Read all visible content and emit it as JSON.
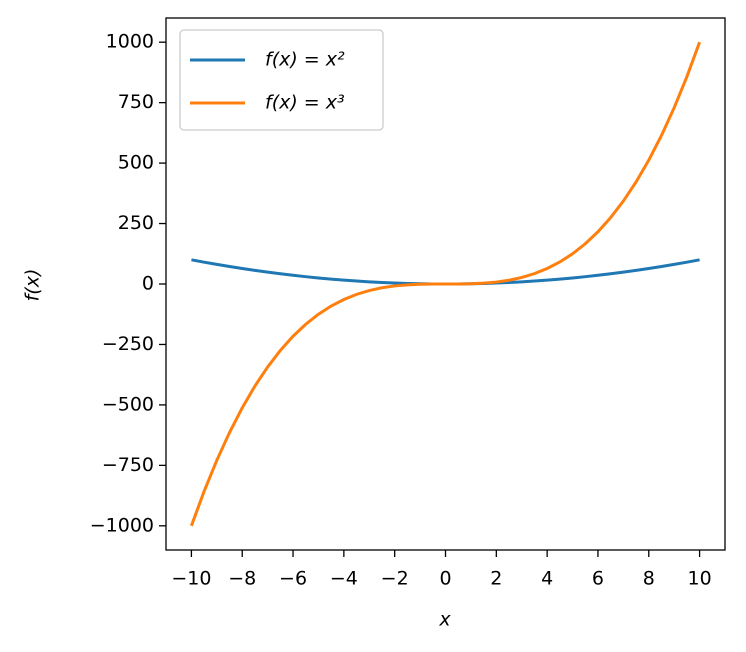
{
  "chart_data": {
    "type": "line",
    "xlabel": "x",
    "ylabel": "f(x)",
    "x": [
      -10,
      -9.5,
      -9,
      -8.5,
      -8,
      -7.5,
      -7,
      -6.5,
      -6,
      -5.5,
      -5,
      -4.5,
      -4,
      -3.5,
      -3,
      -2.5,
      -2,
      -1.5,
      -1,
      -0.5,
      0,
      0.5,
      1,
      1.5,
      2,
      2.5,
      3,
      3.5,
      4,
      4.5,
      5,
      5.5,
      6,
      6.5,
      7,
      7.5,
      8,
      8.5,
      9,
      9.5,
      10
    ],
    "series": [
      {
        "name": "f(x) = x²",
        "color": "#1f77b4",
        "values": [
          100,
          90.25,
          81,
          72.25,
          64,
          56.25,
          49,
          42.25,
          36,
          30.25,
          25,
          20.25,
          16,
          12.25,
          9,
          6.25,
          4,
          2.25,
          1,
          0.25,
          0,
          0.25,
          1,
          2.25,
          4,
          6.25,
          9,
          12.25,
          16,
          20.25,
          25,
          30.25,
          36,
          42.25,
          49,
          56.25,
          64,
          72.25,
          81,
          90.25,
          100
        ]
      },
      {
        "name": "f(x) = x³",
        "color": "#ff7f0e",
        "values": [
          -1000,
          -857.375,
          -729,
          -614.125,
          -512,
          -421.875,
          -343,
          -274.625,
          -216,
          -166.375,
          -125,
          -91.125,
          -64,
          -42.875,
          -27,
          -15.625,
          -8,
          -3.375,
          -1,
          -0.125,
          0,
          0.125,
          1,
          3.375,
          8,
          15.625,
          27,
          42.875,
          64,
          91.125,
          125,
          166.375,
          216,
          274.625,
          343,
          421.875,
          512,
          614.125,
          729,
          857.375,
          1000
        ]
      }
    ],
    "xlim": [
      -11,
      11
    ],
    "ylim": [
      -1100,
      1100
    ],
    "xticks": [
      {
        "value": -10,
        "label": "−10"
      },
      {
        "value": -8,
        "label": "−8"
      },
      {
        "value": -6,
        "label": "−6"
      },
      {
        "value": -4,
        "label": "−4"
      },
      {
        "value": -2,
        "label": "−2"
      },
      0,
      2,
      4,
      6,
      8,
      10
    ],
    "yticks": [
      {
        "value": -1000,
        "label": "−1000"
      },
      {
        "value": -750,
        "label": "−750"
      },
      {
        "value": -500,
        "label": "−500"
      },
      {
        "value": -250,
        "label": "−250"
      },
      0,
      250,
      500,
      750,
      1000
    ],
    "legend": "upper left",
    "grid": false
  }
}
